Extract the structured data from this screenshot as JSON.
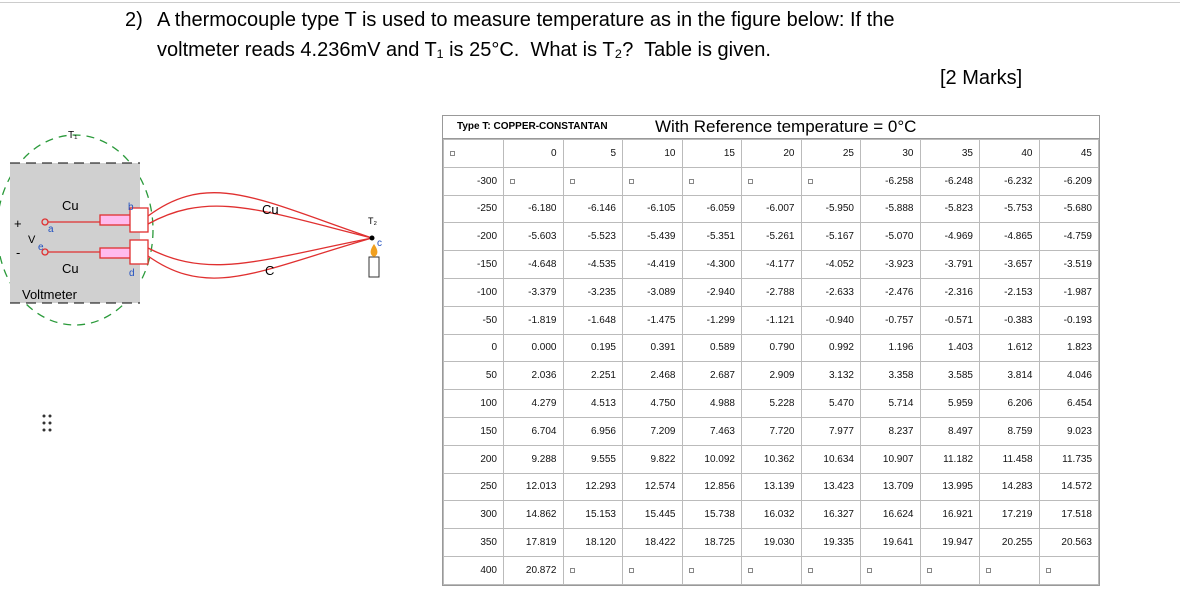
{
  "question": {
    "number": "2)",
    "line1": "A thermocouple type T is used to measure temperature as in the figure below: If the",
    "line2": "voltmeter reads 4.236mV and T₁ is 25°C.  What is T₂?  Table is given.",
    "marks": "[2 Marks]"
  },
  "diagram": {
    "labels": {
      "t1": "T₁",
      "cu_top": "Cu",
      "b": "b",
      "cu_wire": "Cu",
      "t2": "T₂",
      "plus": "+",
      "a": "a",
      "v": "V",
      "e": "e",
      "minus": "-",
      "c": "c",
      "cu_bottom": "Cu",
      "d": "d",
      "c_wire": "C",
      "voltmeter": "Voltmeter"
    }
  },
  "table": {
    "type_label": "Type T: COPPER-CONSTANTAN",
    "reference": "With Reference temperature = 0°C",
    "columns": [
      0,
      5,
      10,
      15,
      20,
      25,
      30,
      35,
      40,
      45
    ],
    "rows": [
      {
        "temp": -300,
        "values": [
          null,
          null,
          null,
          null,
          null,
          null,
          "-6.258",
          "-6.248",
          "-6.232",
          "-6.209"
        ]
      },
      {
        "temp": -250,
        "values": [
          "-6.180",
          "-6.146",
          "-6.105",
          "-6.059",
          "-6.007",
          "-5.950",
          "-5.888",
          "-5.823",
          "-5.753",
          "-5.680"
        ]
      },
      {
        "temp": -200,
        "values": [
          "-5.603",
          "-5.523",
          "-5.439",
          "-5.351",
          "-5.261",
          "-5.167",
          "-5.070",
          "-4.969",
          "-4.865",
          "-4.759"
        ]
      },
      {
        "temp": -150,
        "values": [
          "-4.648",
          "-4.535",
          "-4.419",
          "-4.300",
          "-4.177",
          "-4.052",
          "-3.923",
          "-3.791",
          "-3.657",
          "-3.519"
        ]
      },
      {
        "temp": -100,
        "values": [
          "-3.379",
          "-3.235",
          "-3.089",
          "-2.940",
          "-2.788",
          "-2.633",
          "-2.476",
          "-2.316",
          "-2.153",
          "-1.987"
        ]
      },
      {
        "temp": -50,
        "values": [
          "-1.819",
          "-1.648",
          "-1.475",
          "-1.299",
          "-1.121",
          "-0.940",
          "-0.757",
          "-0.571",
          "-0.383",
          "-0.193"
        ]
      },
      {
        "temp": 0,
        "values": [
          "0.000",
          "0.195",
          "0.391",
          "0.589",
          "0.790",
          "0.992",
          "1.196",
          "1.403",
          "1.612",
          "1.823"
        ]
      },
      {
        "temp": 50,
        "values": [
          "2.036",
          "2.251",
          "2.468",
          "2.687",
          "2.909",
          "3.132",
          "3.358",
          "3.585",
          "3.814",
          "4.046"
        ]
      },
      {
        "temp": 100,
        "values": [
          "4.279",
          "4.513",
          "4.750",
          "4.988",
          "5.228",
          "5.470",
          "5.714",
          "5.959",
          "6.206",
          "6.454"
        ]
      },
      {
        "temp": 150,
        "values": [
          "6.704",
          "6.956",
          "7.209",
          "7.463",
          "7.720",
          "7.977",
          "8.237",
          "8.497",
          "8.759",
          "9.023"
        ]
      },
      {
        "temp": 200,
        "values": [
          "9.288",
          "9.555",
          "9.822",
          "10.092",
          "10.362",
          "10.634",
          "10.907",
          "11.182",
          "11.458",
          "11.735"
        ]
      },
      {
        "temp": 250,
        "values": [
          "12.013",
          "12.293",
          "12.574",
          "12.856",
          "13.139",
          "13.423",
          "13.709",
          "13.995",
          "14.283",
          "14.572"
        ]
      },
      {
        "temp": 300,
        "values": [
          "14.862",
          "15.153",
          "15.445",
          "15.738",
          "16.032",
          "16.327",
          "16.624",
          "16.921",
          "17.219",
          "17.518"
        ]
      },
      {
        "temp": 350,
        "values": [
          "17.819",
          "18.120",
          "18.422",
          "18.725",
          "19.030",
          "19.335",
          "19.641",
          "19.947",
          "20.255",
          "20.563"
        ]
      },
      {
        "temp": 400,
        "values": [
          "20.872",
          null,
          null,
          null,
          null,
          null,
          null,
          null,
          null,
          null
        ]
      }
    ]
  }
}
